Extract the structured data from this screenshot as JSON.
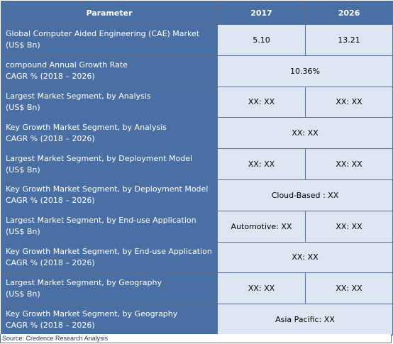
{
  "header": {
    "parameter": "Parameter",
    "year1": "2017",
    "year2": "2026"
  },
  "rows": [
    {
      "label1": "Global Computer Aided Engineering (CAE) Market",
      "label2": "(US$ Bn)",
      "v2017": "5.10",
      "v2026": "13.21"
    },
    {
      "label1": "compound Annual Growth Rate",
      "label2": "CAGR % (2018 – 2026)",
      "merged": "10.36%"
    },
    {
      "label1": "Largest Market Segment, by Analysis",
      "label2": "(US$ Bn)",
      "v2017": "XX: XX",
      "v2026": "XX: XX"
    },
    {
      "label1": "Key Growth Market Segment, by Analysis",
      "label2": "CAGR % (2018 – 2026)",
      "merged": "XX: XX"
    },
    {
      "label1": "Largest Market Segment, by Deployment Model",
      "label2": "(US$ Bn)",
      "v2017": "XX: XX",
      "v2026": "XX: XX"
    },
    {
      "label1": "Key Growth Market Segment, by Deployment Model",
      "label2": "CAGR % (2018 – 2026)",
      "merged": "Cloud-Based : XX"
    },
    {
      "label1": "Largest Market Segment, by End-use Application",
      "label2": "(US$ Bn)",
      "v2017": "Automotive: XX",
      "v2026": "XX: XX"
    },
    {
      "label1": "Key Growth Market Segment, by End-use Application",
      "label2": "CAGR % (2018 – 2026)",
      "merged": "XX: XX"
    },
    {
      "label1": "Largest Market Segment, by Geography",
      "label2": "(US$ Bn)",
      "v2017": "XX: XX",
      "v2026": "XX: XX"
    },
    {
      "label1": "Key Growth Market Segment, by Geography",
      "label2": "CAGR % (2018 – 2026)",
      "merged": "Asia Pacific: XX"
    }
  ],
  "source": "Source: Credence Research Analysis"
}
